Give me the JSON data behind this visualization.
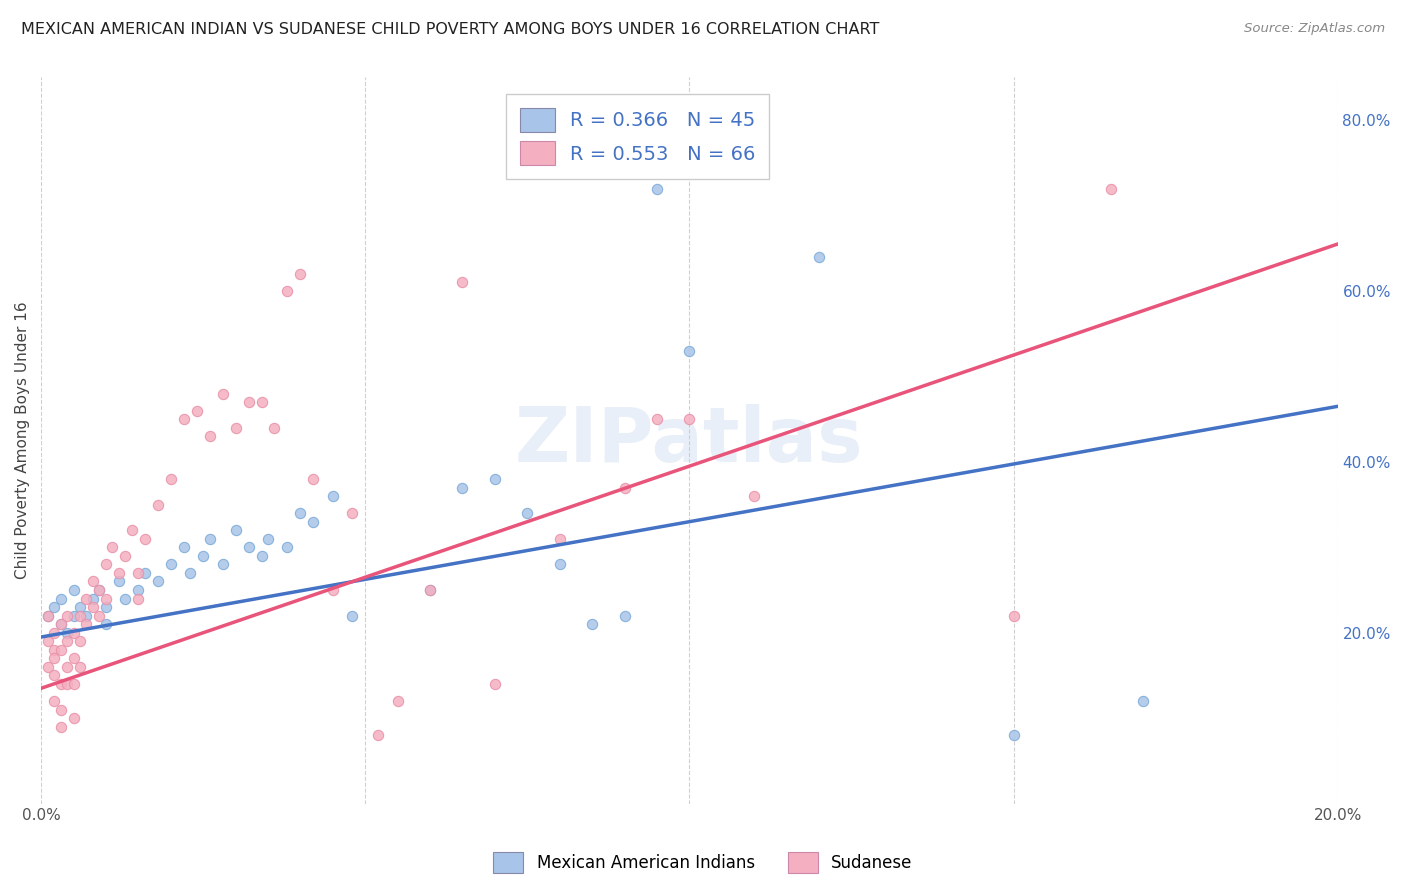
{
  "title": "MEXICAN AMERICAN INDIAN VS SUDANESE CHILD POVERTY AMONG BOYS UNDER 16 CORRELATION CHART",
  "source": "Source: ZipAtlas.com",
  "ylabel": "Child Poverty Among Boys Under 16",
  "xlim": [
    0.0,
    0.2
  ],
  "ylim": [
    0.0,
    0.85
  ],
  "legend_r_blue": "0.366",
  "legend_n_blue": "45",
  "legend_r_pink": "0.553",
  "legend_n_pink": "66",
  "legend_label_blue": "Mexican American Indians",
  "legend_label_pink": "Sudanese",
  "blue_color": "#a8c4e8",
  "pink_color": "#f4afc0",
  "blue_line_color": "#4472c4",
  "pink_line_color": "#e8547a",
  "watermark": "ZIPatlas",
  "blue_scatter_x": [
    0.001,
    0.002,
    0.003,
    0.003,
    0.004,
    0.005,
    0.005,
    0.006,
    0.007,
    0.008,
    0.009,
    0.01,
    0.01,
    0.012,
    0.013,
    0.015,
    0.016,
    0.018,
    0.02,
    0.022,
    0.023,
    0.025,
    0.026,
    0.028,
    0.03,
    0.032,
    0.034,
    0.035,
    0.038,
    0.04,
    0.042,
    0.045,
    0.048,
    0.06,
    0.065,
    0.07,
    0.075,
    0.08,
    0.085,
    0.09,
    0.095,
    0.1,
    0.12,
    0.15,
    0.17
  ],
  "blue_scatter_y": [
    0.22,
    0.23,
    0.21,
    0.24,
    0.2,
    0.22,
    0.25,
    0.23,
    0.22,
    0.24,
    0.25,
    0.23,
    0.21,
    0.26,
    0.24,
    0.25,
    0.27,
    0.26,
    0.28,
    0.3,
    0.27,
    0.29,
    0.31,
    0.28,
    0.32,
    0.3,
    0.29,
    0.31,
    0.3,
    0.34,
    0.33,
    0.36,
    0.22,
    0.25,
    0.37,
    0.38,
    0.34,
    0.28,
    0.21,
    0.22,
    0.72,
    0.53,
    0.64,
    0.08,
    0.12
  ],
  "pink_scatter_x": [
    0.001,
    0.001,
    0.001,
    0.002,
    0.002,
    0.002,
    0.002,
    0.002,
    0.003,
    0.003,
    0.003,
    0.003,
    0.003,
    0.004,
    0.004,
    0.004,
    0.004,
    0.005,
    0.005,
    0.005,
    0.005,
    0.006,
    0.006,
    0.006,
    0.007,
    0.007,
    0.008,
    0.008,
    0.009,
    0.009,
    0.01,
    0.01,
    0.011,
    0.012,
    0.013,
    0.014,
    0.015,
    0.015,
    0.016,
    0.018,
    0.02,
    0.022,
    0.024,
    0.026,
    0.028,
    0.03,
    0.032,
    0.034,
    0.036,
    0.038,
    0.04,
    0.042,
    0.045,
    0.048,
    0.052,
    0.055,
    0.06,
    0.065,
    0.07,
    0.08,
    0.09,
    0.095,
    0.1,
    0.11,
    0.15,
    0.165
  ],
  "pink_scatter_y": [
    0.22,
    0.19,
    0.16,
    0.2,
    0.18,
    0.15,
    0.12,
    0.17,
    0.21,
    0.18,
    0.14,
    0.11,
    0.09,
    0.19,
    0.16,
    0.14,
    0.22,
    0.2,
    0.17,
    0.14,
    0.1,
    0.22,
    0.19,
    0.16,
    0.24,
    0.21,
    0.23,
    0.26,
    0.25,
    0.22,
    0.28,
    0.24,
    0.3,
    0.27,
    0.29,
    0.32,
    0.27,
    0.24,
    0.31,
    0.35,
    0.38,
    0.45,
    0.46,
    0.43,
    0.48,
    0.44,
    0.47,
    0.47,
    0.44,
    0.6,
    0.62,
    0.38,
    0.25,
    0.34,
    0.08,
    0.12,
    0.25,
    0.61,
    0.14,
    0.31,
    0.37,
    0.45,
    0.45,
    0.36,
    0.22,
    0.72
  ]
}
